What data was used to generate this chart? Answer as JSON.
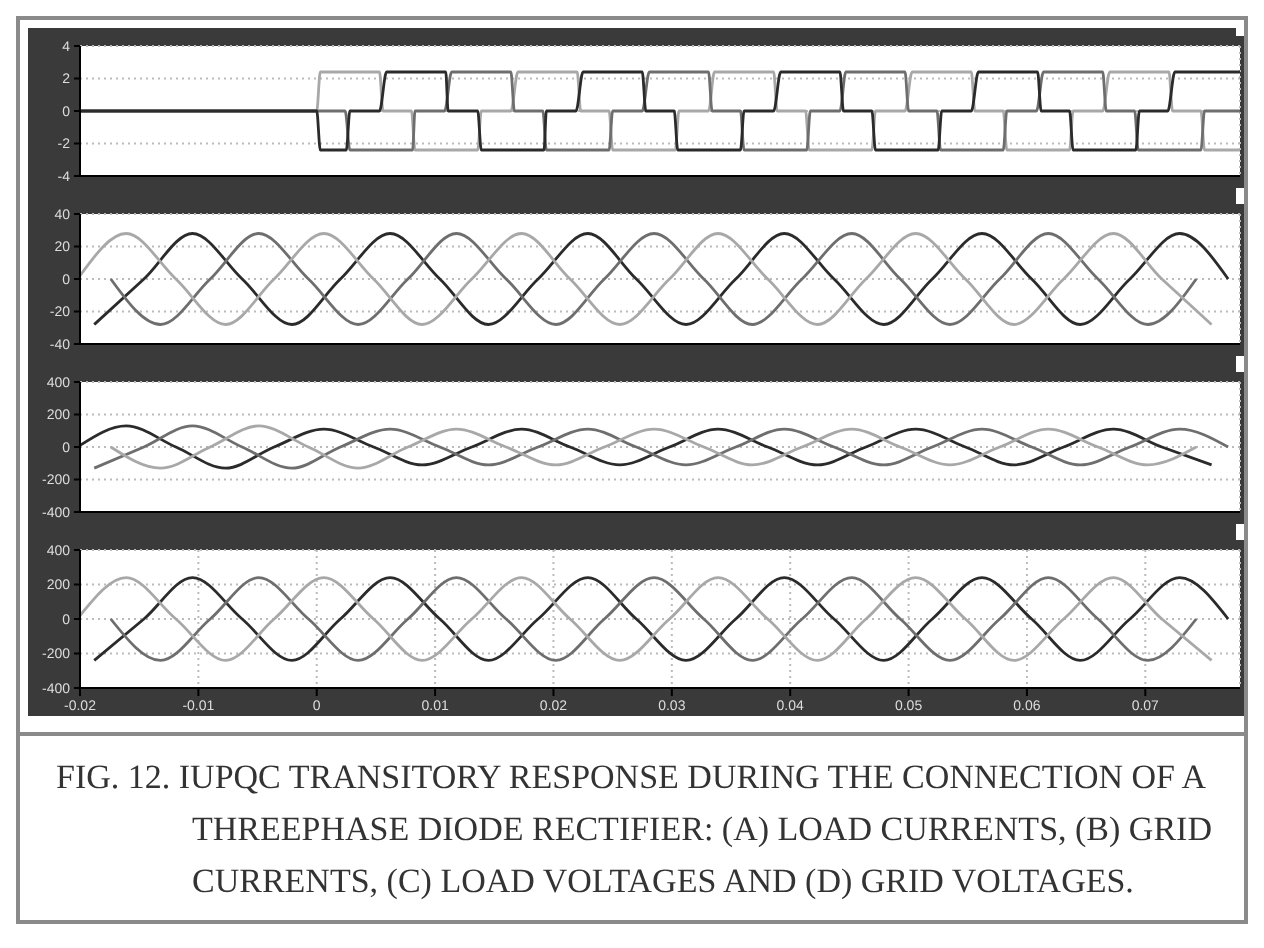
{
  "chart_data": [
    {
      "type": "line",
      "xlim": [
        -0.02,
        0.078
      ],
      "xticks": [
        -0.02,
        -0.01,
        0,
        0.01,
        0.02,
        0.03,
        0.04,
        0.05,
        0.06,
        0.07
      ],
      "ylim": [
        -4,
        4
      ],
      "yticks": [
        -4,
        -2,
        0,
        2,
        4
      ],
      "grid": true,
      "tick_labels": "y",
      "series": [
        {
          "color": "#a8a8a8",
          "x": [
            -0.02,
            0,
            0.0003,
            0.0053,
            0.0056,
            0.008,
            0.0083,
            0.0136,
            0.0139,
            0.0164,
            0.017,
            0.022,
            0.0223,
            0.0247,
            0.025,
            0.0303,
            0.0306,
            0.0331,
            0.0336,
            0.0386,
            0.0389,
            0.0413,
            0.0416,
            0.0469,
            0.0472,
            0.0497,
            0.0503,
            0.0553,
            0.0556,
            0.058,
            0.0583,
            0.0636,
            0.0639,
            0.0664,
            0.067,
            0.072,
            0.0723,
            0.0747,
            0.075,
            0.078
          ],
          "values": [
            0,
            0,
            2.4,
            2.4,
            0,
            0,
            -2.4,
            -2.4,
            0,
            0,
            2.4,
            2.4,
            0,
            0,
            -2.4,
            -2.4,
            0,
            0,
            2.4,
            2.4,
            0,
            0,
            -2.4,
            -2.4,
            0,
            0,
            2.4,
            2.4,
            0,
            0,
            -2.4,
            -2.4,
            0,
            0,
            2.4,
            2.4,
            0,
            0,
            -2.4,
            -2.4
          ]
        },
        {
          "color": "#6e6e6e",
          "x": [
            -0.02,
            0.0024,
            0.0028,
            0.0081,
            0.0083,
            0.0108,
            0.0114,
            0.0164,
            0.0167,
            0.0191,
            0.0194,
            0.0247,
            0.025,
            0.0275,
            0.0281,
            0.0331,
            0.0334,
            0.0358,
            0.0361,
            0.0414,
            0.0417,
            0.0442,
            0.0447,
            0.0497,
            0.05,
            0.0524,
            0.0527,
            0.058,
            0.0583,
            0.0608,
            0.0614,
            0.0664,
            0.0667,
            0.0691,
            0.0694,
            0.0747,
            0.075,
            0.0775,
            0.078
          ],
          "values": [
            0,
            0,
            -2.4,
            -2.4,
            0,
            0,
            2.4,
            2.4,
            0,
            0,
            -2.4,
            -2.4,
            0,
            0,
            2.4,
            2.4,
            0,
            0,
            -2.4,
            -2.4,
            0,
            0,
            2.4,
            2.4,
            0,
            0,
            -2.4,
            -2.4,
            0,
            0,
            2.4,
            2.4,
            0,
            0,
            -2.4,
            -2.4,
            0,
            0,
            0
          ]
        },
        {
          "color": "#2b2b2b",
          "x": [
            -0.02,
            0,
            0.0003,
            0.0025,
            0.0028,
            0.0053,
            0.0059,
            0.0109,
            0.0111,
            0.0136,
            0.0139,
            0.0192,
            0.0194,
            0.0219,
            0.0225,
            0.0275,
            0.0278,
            0.0302,
            0.0305,
            0.0358,
            0.0361,
            0.0386,
            0.0392,
            0.0442,
            0.0445,
            0.0469,
            0.0472,
            0.0525,
            0.0528,
            0.0553,
            0.0559,
            0.0609,
            0.0612,
            0.0636,
            0.0639,
            0.0692,
            0.0695,
            0.0719,
            0.0725,
            0.0775,
            0.078
          ],
          "values": [
            0,
            0,
            -2.4,
            -2.4,
            0,
            0,
            2.4,
            2.4,
            0,
            0,
            -2.4,
            -2.4,
            0,
            0,
            2.4,
            2.4,
            0,
            0,
            -2.4,
            -2.4,
            0,
            0,
            2.4,
            2.4,
            0,
            0,
            -2.4,
            -2.4,
            0,
            0,
            2.4,
            2.4,
            0,
            0,
            -2.4,
            -2.4,
            0,
            0,
            2.4,
            2.4,
            2.4
          ]
        }
      ]
    },
    {
      "type": "line",
      "xlim": [
        -0.02,
        0.078
      ],
      "xticks": [
        -0.02,
        -0.01,
        0,
        0.01,
        0.02,
        0.03,
        0.04,
        0.05,
        0.06,
        0.07
      ],
      "ylim": [
        -40,
        40
      ],
      "yticks": [
        -40,
        -20,
        0,
        20,
        40
      ],
      "grid": true,
      "tick_labels": "y",
      "series": [
        {
          "color": "#2b2b2b",
          "x": [
            -0.0188,
            -0.0146,
            -0.0105,
            -0.0063,
            -0.0021,
            0.002,
            0.0062,
            0.0104,
            0.0145,
            0.0187,
            0.0229,
            0.027,
            0.0312,
            0.0354,
            0.0395,
            0.0437,
            0.0479,
            0.052,
            0.0562,
            0.0604,
            0.0645,
            0.0687,
            0.0729,
            0.077
          ],
          "values": [
            -28,
            0,
            28,
            0,
            -28,
            0,
            28,
            0,
            -28,
            0,
            28,
            0,
            -28,
            0,
            28,
            0,
            -28,
            0,
            28,
            0,
            -28,
            0,
            28,
            0
          ]
        },
        {
          "color": "#6e6e6e",
          "x": [
            -0.0174,
            -0.0132,
            -0.009,
            -0.0049,
            -0.0007,
            0.0035,
            0.0077,
            0.0118,
            0.016,
            0.0202,
            0.0243,
            0.0285,
            0.0327,
            0.0368,
            0.041,
            0.0452,
            0.0493,
            0.0535,
            0.0577,
            0.0618,
            0.066,
            0.0702,
            0.0743
          ],
          "values": [
            0,
            -28,
            0,
            28,
            0,
            -28,
            0,
            28,
            0,
            -28,
            0,
            28,
            0,
            -28,
            0,
            28,
            0,
            -28,
            0,
            28,
            0,
            -28,
            0
          ]
        },
        {
          "color": "#a8a8a8",
          "x": [
            -0.02,
            -0.0161,
            -0.0119,
            -0.0077,
            -0.0036,
            0.0006,
            0.0048,
            0.0089,
            0.0131,
            0.0173,
            0.0214,
            0.0256,
            0.0298,
            0.0339,
            0.0381,
            0.0423,
            0.0464,
            0.0506,
            0.0548,
            0.0589,
            0.0631,
            0.0673,
            0.0714,
            0.0756
          ],
          "values": [
            2,
            28,
            0,
            -28,
            0,
            28,
            0,
            -28,
            0,
            28,
            0,
            -28,
            0,
            28,
            0,
            -28,
            0,
            28,
            0,
            -28,
            0,
            28,
            0,
            -28
          ]
        }
      ]
    },
    {
      "type": "line",
      "xlim": [
        -0.02,
        0.078
      ],
      "xticks": [
        -0.02,
        -0.01,
        0,
        0.01,
        0.02,
        0.03,
        0.04,
        0.05,
        0.06,
        0.07
      ],
      "ylim": [
        -400,
        400
      ],
      "yticks": [
        -400,
        -200,
        0,
        200,
        400
      ],
      "grid": true,
      "tick_labels": "y",
      "series": [
        {
          "color": "#2b2b2b",
          "x": [
            -0.02,
            -0.0161,
            -0.0119,
            -0.0077,
            -0.0036,
            0.0006,
            0.0048,
            0.0089,
            0.0131,
            0.0173,
            0.0214,
            0.0256,
            0.0298,
            0.0339,
            0.0381,
            0.0423,
            0.0464,
            0.0506,
            0.0548,
            0.0589,
            0.0631,
            0.0673,
            0.0714,
            0.0756
          ],
          "values": [
            10,
            130,
            0,
            -130,
            0,
            110,
            0,
            -110,
            0,
            110,
            0,
            -110,
            0,
            110,
            0,
            -110,
            0,
            110,
            0,
            -110,
            0,
            110,
            0,
            -110
          ]
        },
        {
          "color": "#6e6e6e",
          "x": [
            -0.0188,
            -0.0146,
            -0.0105,
            -0.0063,
            -0.0021,
            0.002,
            0.0062,
            0.0104,
            0.0145,
            0.0187,
            0.0229,
            0.027,
            0.0312,
            0.0354,
            0.0395,
            0.0437,
            0.0479,
            0.052,
            0.0562,
            0.0604,
            0.0645,
            0.0687,
            0.0729,
            0.077
          ],
          "values": [
            -130,
            0,
            130,
            0,
            -130,
            0,
            110,
            0,
            -110,
            0,
            110,
            0,
            -110,
            0,
            110,
            0,
            -110,
            0,
            110,
            0,
            -110,
            0,
            110,
            0
          ]
        },
        {
          "color": "#a8a8a8",
          "x": [
            -0.0174,
            -0.0132,
            -0.009,
            -0.0049,
            -0.0007,
            0.0035,
            0.0077,
            0.0118,
            0.016,
            0.0202,
            0.0243,
            0.0285,
            0.0327,
            0.0368,
            0.041,
            0.0452,
            0.0493,
            0.0535,
            0.0577,
            0.0618,
            0.066,
            0.0702,
            0.0743
          ],
          "values": [
            0,
            -130,
            0,
            130,
            0,
            -130,
            0,
            110,
            0,
            -110,
            0,
            110,
            0,
            -110,
            0,
            110,
            0,
            -110,
            0,
            110,
            0,
            -110,
            0
          ]
        }
      ]
    },
    {
      "type": "line",
      "xlim": [
        -0.02,
        0.078
      ],
      "xticks": [
        -0.02,
        -0.01,
        0,
        0.01,
        0.02,
        0.03,
        0.04,
        0.05,
        0.06,
        0.07
      ],
      "ylim": [
        -400,
        400
      ],
      "yticks": [
        -400,
        -200,
        0,
        200,
        400
      ],
      "grid": true,
      "annotations": [
        "FIG. 12. IUPQC TRANSITORY RESPONSE DURING THE CONNECTION OF A THREEPHASE DIODE RECTIFIER: (A) LOAD CURRENTS, (B) GRID CURRENTS, (C) LOAD VOLTAGES AND (D) GRID VOLTAGES."
      ],
      "series": [
        {
          "color": "#2b2b2b",
          "x": [
            -0.0188,
            -0.0146,
            -0.0105,
            -0.0063,
            -0.0021,
            0.002,
            0.0062,
            0.0104,
            0.0145,
            0.0187,
            0.0229,
            0.027,
            0.0312,
            0.0354,
            0.0395,
            0.0437,
            0.0479,
            0.052,
            0.0562,
            0.0604,
            0.0645,
            0.0687,
            0.0729,
            0.077
          ],
          "values": [
            -240,
            0,
            240,
            0,
            -240,
            0,
            240,
            0,
            -240,
            0,
            240,
            0,
            -240,
            0,
            240,
            0,
            -240,
            0,
            240,
            0,
            -240,
            0,
            240,
            0
          ]
        },
        {
          "color": "#6e6e6e",
          "x": [
            -0.0174,
            -0.0132,
            -0.009,
            -0.0049,
            -0.0007,
            0.0035,
            0.0077,
            0.0118,
            0.016,
            0.0202,
            0.0243,
            0.0285,
            0.0327,
            0.0368,
            0.041,
            0.0452,
            0.0493,
            0.0535,
            0.0577,
            0.0618,
            0.066,
            0.0702,
            0.0743
          ],
          "values": [
            0,
            -240,
            0,
            240,
            0,
            -240,
            0,
            240,
            0,
            -240,
            0,
            240,
            0,
            -240,
            0,
            240,
            0,
            -240,
            0,
            240,
            0,
            -240,
            0
          ]
        },
        {
          "color": "#a8a8a8",
          "x": [
            -0.02,
            -0.0161,
            -0.0119,
            -0.0077,
            -0.0036,
            0.0006,
            0.0048,
            0.0089,
            0.0131,
            0.0173,
            0.0214,
            0.0256,
            0.0298,
            0.0339,
            0.0381,
            0.0423,
            0.0464,
            0.0506,
            0.0548,
            0.0589,
            0.0631,
            0.0673,
            0.0714,
            0.0756
          ],
          "values": [
            20,
            240,
            0,
            -240,
            0,
            240,
            0,
            -240,
            0,
            240,
            0,
            -240,
            0,
            240,
            0,
            -240,
            0,
            240,
            0,
            -240,
            0,
            240,
            0,
            -240
          ]
        }
      ]
    }
  ]
}
